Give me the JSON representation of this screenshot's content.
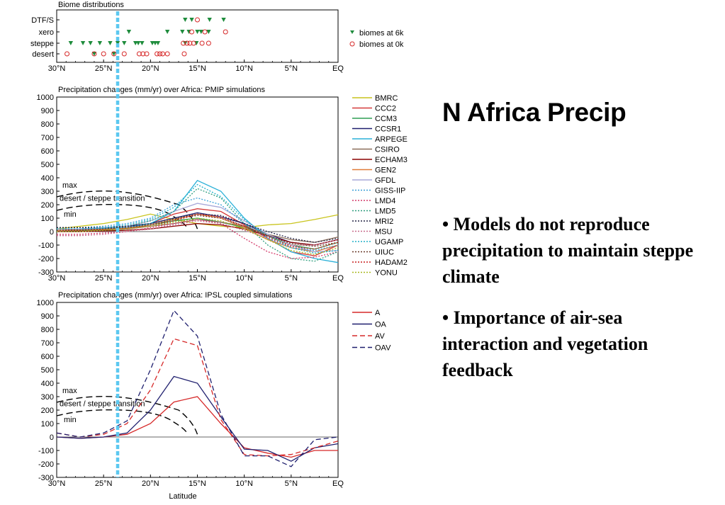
{
  "slide": {
    "title": "N Africa Precip",
    "bullets": [
      "• Models do not reproduce precipitation to maintain steppe climate",
      "• Importance of air-sea interaction and vegetation feedback"
    ]
  },
  "chart_data": [
    {
      "type": "scatter",
      "title": "Biome distributions",
      "xlabel": "",
      "x_ticks": [
        "30°N",
        "25°N",
        "20°N",
        "15°N",
        "10°N",
        "5°N",
        "EQ"
      ],
      "xlim": [
        30,
        0
      ],
      "categories": [
        "desert",
        "steppe",
        "xero",
        "DTF/S"
      ],
      "series": [
        {
          "name": "biomes at 6k",
          "color": "#1e8c3c",
          "marker": "triangle-down",
          "points": [
            {
              "x": 28.5,
              "y": "steppe"
            },
            {
              "x": 27.2,
              "y": "steppe"
            },
            {
              "x": 26.4,
              "y": "steppe"
            },
            {
              "x": 25.4,
              "y": "steppe"
            },
            {
              "x": 24.3,
              "y": "steppe"
            },
            {
              "x": 23.5,
              "y": "steppe"
            },
            {
              "x": 22.8,
              "y": "steppe"
            },
            {
              "x": 21.6,
              "y": "steppe"
            },
            {
              "x": 21.3,
              "y": "steppe"
            },
            {
              "x": 20.9,
              "y": "steppe"
            },
            {
              "x": 19.8,
              "y": "steppe"
            },
            {
              "x": 19.5,
              "y": "steppe"
            },
            {
              "x": 19.2,
              "y": "steppe"
            },
            {
              "x": 16.3,
              "y": "steppe"
            },
            {
              "x": 15.1,
              "y": "steppe"
            },
            {
              "x": 22.3,
              "y": "xero"
            },
            {
              "x": 18.2,
              "y": "xero"
            },
            {
              "x": 16.6,
              "y": "xero"
            },
            {
              "x": 15.9,
              "y": "xero"
            },
            {
              "x": 15.0,
              "y": "xero"
            },
            {
              "x": 14.6,
              "y": "xero"
            },
            {
              "x": 13.8,
              "y": "xero"
            },
            {
              "x": 16.3,
              "y": "DTF/S"
            },
            {
              "x": 15.6,
              "y": "DTF/S"
            },
            {
              "x": 13.7,
              "y": "DTF/S"
            },
            {
              "x": 12.2,
              "y": "DTF/S"
            },
            {
              "x": 26.0,
              "y": "desert"
            },
            {
              "x": 23.9,
              "y": "desert"
            }
          ]
        },
        {
          "name": "biomes at 0k",
          "color": "#d62828",
          "marker": "circle-open",
          "points": [
            {
              "x": 28.9,
              "y": "desert"
            },
            {
              "x": 26.0,
              "y": "desert"
            },
            {
              "x": 25.0,
              "y": "desert"
            },
            {
              "x": 23.9,
              "y": "desert"
            },
            {
              "x": 22.8,
              "y": "desert"
            },
            {
              "x": 21.2,
              "y": "desert"
            },
            {
              "x": 20.8,
              "y": "desert"
            },
            {
              "x": 20.4,
              "y": "desert"
            },
            {
              "x": 19.3,
              "y": "desert"
            },
            {
              "x": 19.0,
              "y": "desert"
            },
            {
              "x": 18.7,
              "y": "desert"
            },
            {
              "x": 18.2,
              "y": "desert"
            },
            {
              "x": 16.4,
              "y": "desert"
            },
            {
              "x": 16.5,
              "y": "steppe"
            },
            {
              "x": 16.1,
              "y": "steppe"
            },
            {
              "x": 15.8,
              "y": "steppe"
            },
            {
              "x": 15.4,
              "y": "steppe"
            },
            {
              "x": 14.5,
              "y": "steppe"
            },
            {
              "x": 13.8,
              "y": "steppe"
            },
            {
              "x": 15.6,
              "y": "xero"
            },
            {
              "x": 14.2,
              "y": "xero"
            },
            {
              "x": 12.0,
              "y": "xero"
            },
            {
              "x": 15.0,
              "y": "DTF/S"
            }
          ]
        }
      ]
    },
    {
      "type": "line",
      "title": "Precipitation changes (mm/yr) over Africa: PMIP simulations",
      "xlabel": "",
      "x_ticks": [
        "30°N",
        "25°N",
        "20°N",
        "15°N",
        "10°N",
        "5°N",
        "EQ"
      ],
      "xlim": [
        30,
        0
      ],
      "ylim": [
        -300,
        1000
      ],
      "y_ticks": [
        -300,
        -200,
        -100,
        0,
        100,
        200,
        300,
        400,
        500,
        600,
        700,
        800,
        900,
        1000
      ],
      "x": [
        30,
        27.5,
        25,
        22.5,
        20,
        17.5,
        15,
        12.5,
        10,
        7.5,
        5,
        2.5,
        0
      ],
      "series": [
        {
          "name": "BMRC",
          "color": "#c9c41d",
          "dash": "solid",
          "values": [
            20,
            40,
            60,
            90,
            130,
            90,
            60,
            40,
            30,
            50,
            60,
            90,
            125
          ]
        },
        {
          "name": "CCC2",
          "color": "#d43a3a",
          "dash": "solid",
          "values": [
            10,
            15,
            20,
            30,
            60,
            130,
            170,
            150,
            50,
            -50,
            -150,
            -180,
            -100
          ]
        },
        {
          "name": "CCM3",
          "color": "#2e9e54",
          "dash": "solid",
          "values": [
            0,
            5,
            10,
            20,
            50,
            80,
            100,
            70,
            30,
            -30,
            -100,
            -130,
            -80
          ]
        },
        {
          "name": "CCSR1",
          "color": "#1f1f6e",
          "dash": "solid",
          "values": [
            20,
            20,
            30,
            40,
            60,
            100,
            140,
            110,
            60,
            -20,
            -80,
            -100,
            -60
          ]
        },
        {
          "name": "ARPEGE",
          "color": "#2ab0d8",
          "dash": "solid",
          "values": [
            20,
            20,
            25,
            30,
            60,
            150,
            380,
            300,
            100,
            -50,
            -150,
            -200,
            -230
          ]
        },
        {
          "name": "CSIRO",
          "color": "#8a6d5a",
          "dash": "solid",
          "values": [
            10,
            10,
            15,
            20,
            40,
            60,
            90,
            70,
            40,
            -20,
            -60,
            -80,
            -40
          ]
        },
        {
          "name": "ECHAM3",
          "color": "#8b0000",
          "dash": "solid",
          "values": [
            0,
            0,
            5,
            10,
            20,
            40,
            60,
            50,
            20,
            -30,
            -80,
            -100,
            -60
          ]
        },
        {
          "name": "GEN2",
          "color": "#e07b39",
          "dash": "solid",
          "values": [
            10,
            10,
            15,
            25,
            50,
            90,
            130,
            100,
            30,
            -60,
            -120,
            -150,
            -100
          ]
        },
        {
          "name": "GFDL",
          "color": "#a9a9d9",
          "dash": "solid",
          "values": [
            20,
            20,
            30,
            40,
            80,
            150,
            210,
            180,
            80,
            -20,
            -100,
            -150,
            -140
          ]
        },
        {
          "name": "GISS-IIP",
          "color": "#3aa0d8",
          "dash": "dotted",
          "values": [
            30,
            30,
            40,
            60,
            100,
            200,
            250,
            200,
            60,
            -50,
            -120,
            -140,
            -100
          ]
        },
        {
          "name": "LMD4",
          "color": "#d43a6a",
          "dash": "dotted",
          "values": [
            -20,
            -20,
            -10,
            0,
            30,
            60,
            90,
            60,
            -50,
            -150,
            -200,
            -190,
            -150
          ]
        },
        {
          "name": "LMD5",
          "color": "#2e9e7e",
          "dash": "dotted",
          "values": [
            10,
            10,
            20,
            40,
            80,
            150,
            320,
            250,
            60,
            -100,
            -200,
            -220,
            -150
          ]
        },
        {
          "name": "MRI2",
          "color": "#222244",
          "dash": "dotted",
          "values": [
            30,
            30,
            30,
            40,
            60,
            100,
            130,
            120,
            60,
            0,
            -50,
            -80,
            -50
          ]
        },
        {
          "name": "MSU",
          "color": "#c86a8a",
          "dash": "dotted",
          "values": [
            -30,
            -30,
            -20,
            0,
            20,
            50,
            80,
            60,
            10,
            -50,
            -100,
            -100,
            -60
          ]
        },
        {
          "name": "UGAMP",
          "color": "#20b0c8",
          "dash": "dotted",
          "values": [
            20,
            20,
            30,
            50,
            90,
            180,
            350,
            260,
            90,
            -30,
            -120,
            -160,
            -140
          ]
        },
        {
          "name": "UIUC",
          "color": "#6a3a2a",
          "dash": "dotted",
          "values": [
            10,
            10,
            20,
            30,
            50,
            90,
            120,
            100,
            40,
            -30,
            -90,
            -110,
            -80
          ]
        },
        {
          "name": "HADAM2",
          "color": "#c81e1e",
          "dash": "dotted",
          "values": [
            0,
            0,
            10,
            20,
            40,
            80,
            130,
            110,
            40,
            -40,
            -110,
            -130,
            -80
          ]
        },
        {
          "name": "YONU",
          "color": "#a8b81e",
          "dash": "dotted",
          "values": [
            0,
            0,
            10,
            20,
            40,
            70,
            100,
            80,
            20,
            -60,
            -140,
            -170,
            -120
          ]
        }
      ],
      "annotation": {
        "text_max": "max",
        "text_mid": "desert / steppe transition",
        "text_min": "min"
      }
    },
    {
      "type": "line",
      "title": "Precipitation changes (mm/yr) over Africa: IPSL coupled simulations",
      "xlabel": "Latitude",
      "x_ticks": [
        "30°N",
        "25°N",
        "20°N",
        "15°N",
        "10°N",
        "5°N",
        "EQ"
      ],
      "xlim": [
        30,
        0
      ],
      "ylim": [
        -300,
        1000
      ],
      "y_ticks": [
        -300,
        -200,
        -100,
        0,
        100,
        200,
        300,
        400,
        500,
        600,
        700,
        800,
        900,
        1000
      ],
      "x": [
        30,
        27.5,
        25,
        22.5,
        20,
        17.5,
        15,
        12.5,
        10,
        7.5,
        5,
        2.5,
        0
      ],
      "series": [
        {
          "name": "A",
          "color": "#d62828",
          "dash": "solid",
          "values": [
            0,
            -10,
            0,
            20,
            100,
            260,
            300,
            100,
            -80,
            -120,
            -150,
            -100,
            -100
          ]
        },
        {
          "name": "OA",
          "color": "#1f1f6e",
          "dash": "solid",
          "values": [
            0,
            -10,
            0,
            30,
            200,
            450,
            400,
            150,
            -90,
            -100,
            -180,
            -80,
            -50
          ]
        },
        {
          "name": "AV",
          "color": "#d62828",
          "dash": "dashed",
          "values": [
            30,
            0,
            20,
            100,
            350,
            730,
            680,
            130,
            -130,
            -140,
            -130,
            -80,
            -30
          ]
        },
        {
          "name": "OAV",
          "color": "#1f1f6e",
          "dash": "dashed",
          "values": [
            30,
            0,
            30,
            120,
            500,
            940,
            750,
            170,
            -140,
            -140,
            -220,
            -20,
            0
          ]
        }
      ],
      "annotation": {
        "text_max": "max",
        "text_mid": "desert / steppe transition",
        "text_min": "min"
      }
    }
  ]
}
